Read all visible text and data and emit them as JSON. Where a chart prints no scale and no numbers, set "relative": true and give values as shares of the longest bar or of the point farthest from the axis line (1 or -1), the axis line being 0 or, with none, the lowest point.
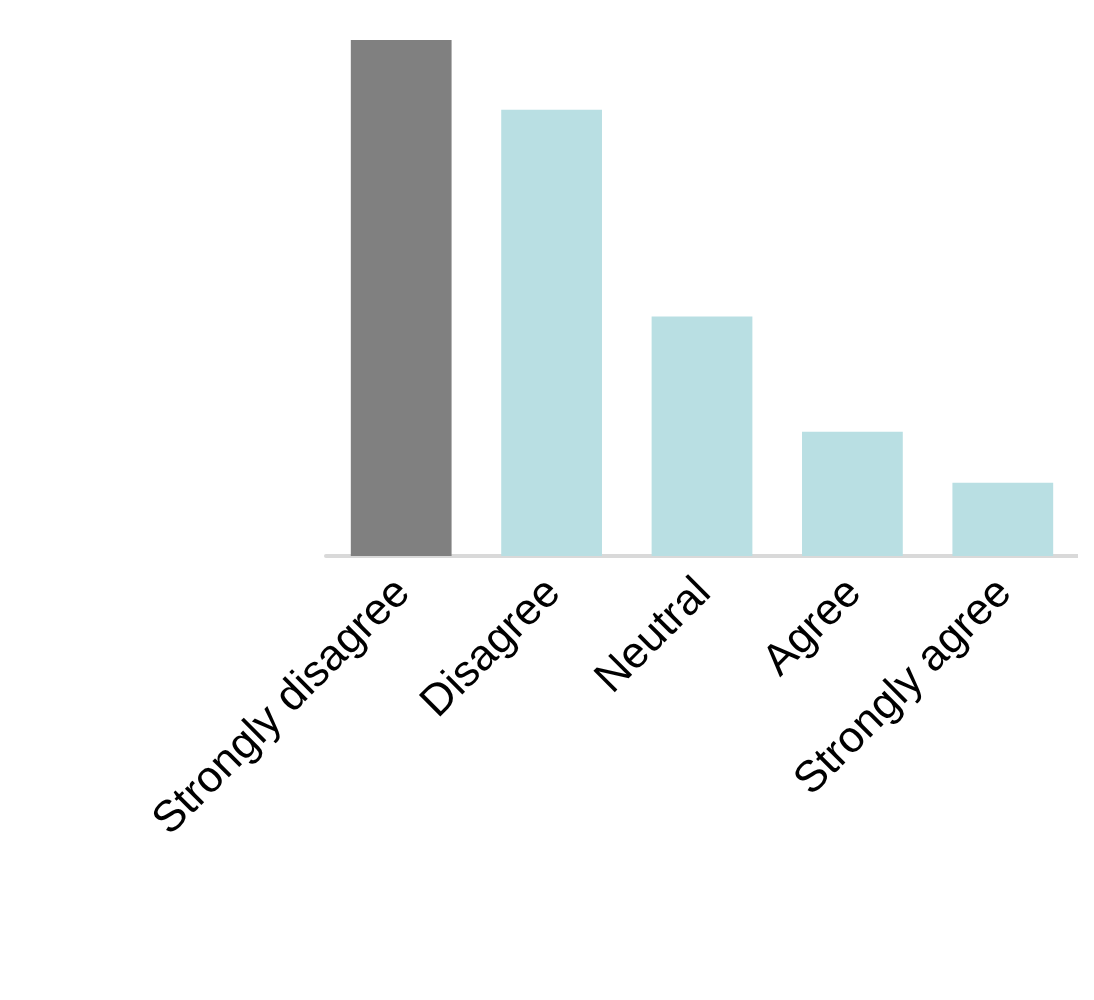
{
  "chart_data": {
    "type": "bar",
    "relative": true,
    "categories": [
      "Strongly disagree",
      "Disagree",
      "Neutral",
      "Agree",
      "Strongly agree"
    ],
    "values": [
      1,
      0.865,
      0.464,
      0.241,
      0.142
    ],
    "colors": [
      "#808080",
      "#b9dfe3",
      "#b9dfe3",
      "#b9dfe3",
      "#b9dfe3"
    ]
  }
}
